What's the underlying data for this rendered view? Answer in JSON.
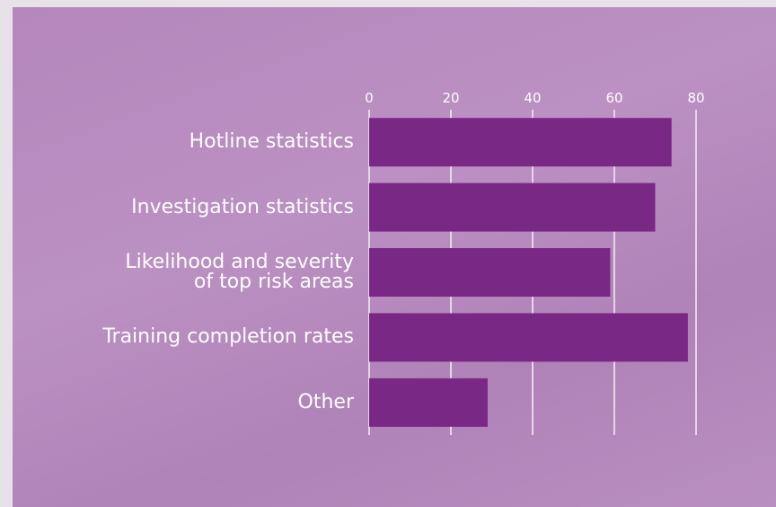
{
  "chart_data": {
    "type": "bar",
    "orientation": "horizontal",
    "categories": [
      "Hotline statistics",
      "Investigation statistics",
      "Likelihood and severity of top risk areas",
      "Training completion rates",
      "Other"
    ],
    "values": [
      74,
      70,
      59,
      78,
      29
    ],
    "color": "#7a2886",
    "xlim": [
      0,
      80
    ],
    "xticks": [
      0,
      20,
      40,
      60,
      80
    ],
    "grid": true
  }
}
